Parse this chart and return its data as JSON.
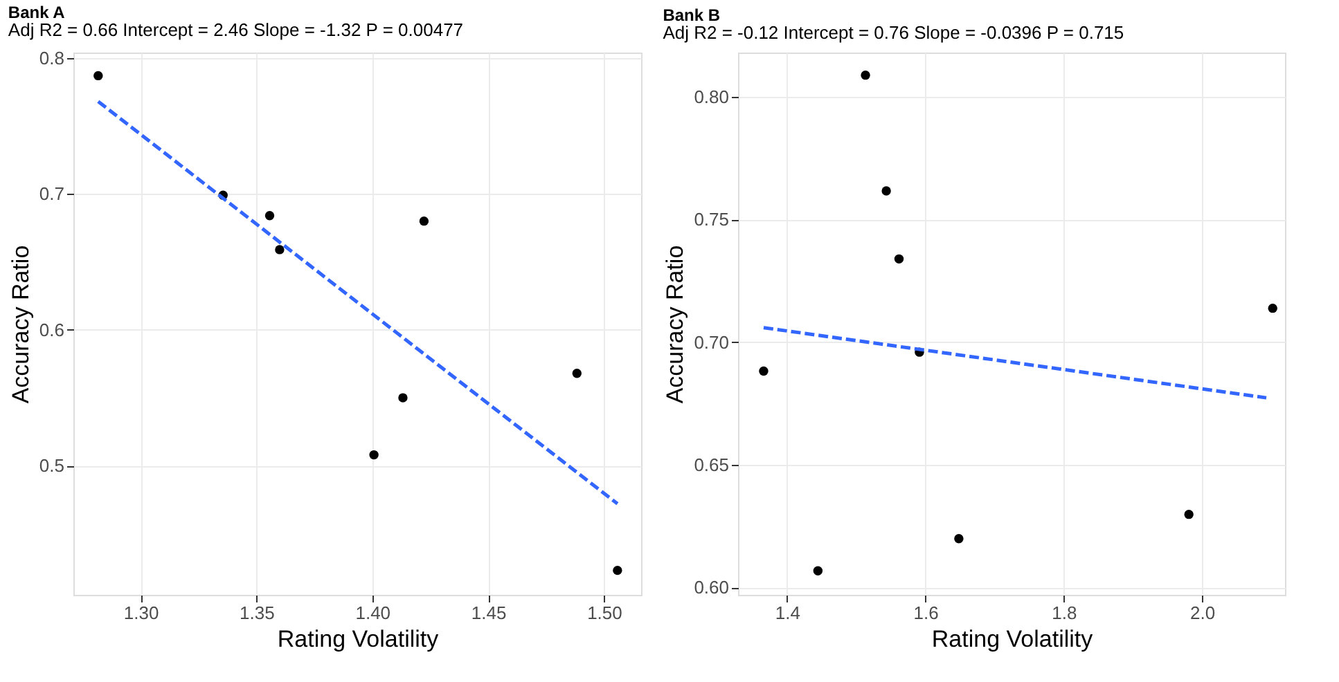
{
  "chart_data": [
    {
      "type": "scatter",
      "title": "Bank A",
      "subtitle": "Adj R2 =  0.66 Intercept = 2.46  Slope = -1.32  P = 0.00477",
      "xlabel": "Rating Volatility",
      "ylabel": "Accuracy Ratio",
      "xlim": [
        1.271,
        1.516
      ],
      "ylim": [
        0.405,
        0.804
      ],
      "xticks": [
        {
          "value": 1.3,
          "label": "1.30"
        },
        {
          "value": 1.35,
          "label": "1.35"
        },
        {
          "value": 1.4,
          "label": "1.40"
        },
        {
          "value": 1.45,
          "label": "1.45"
        },
        {
          "value": 1.5,
          "label": "1.50"
        }
      ],
      "yticks": [
        0.5,
        0.6,
        0.7,
        0.8
      ],
      "grid": true,
      "series": [
        {
          "marker": "circle",
          "color": "#000000",
          "x": [
            1.2817,
            1.3356,
            1.3557,
            1.36,
            1.4223,
            1.4007,
            1.4132,
            1.4883,
            1.5058
          ],
          "values": [
            0.787,
            0.699,
            0.684,
            0.659,
            0.68,
            0.508,
            0.55,
            0.568,
            0.423
          ]
        },
        {
          "type": "line",
          "color": "#3366ff",
          "line_style": "dashed",
          "x": [
            1.2817,
            1.5058
          ],
          "values": [
            0.768,
            0.472
          ]
        }
      ]
    },
    {
      "type": "scatter",
      "title": "Bank B",
      "subtitle": "Adj R2 =  -0.12 Intercept = 0.76  Slope = -0.0396  P = 0.715",
      "xlabel": "Rating Volatility",
      "ylabel": "Accuracy Ratio",
      "xlim": [
        1.329,
        2.12
      ],
      "ylim": [
        0.597,
        0.818
      ],
      "xticks": [
        1.4,
        1.6,
        1.8,
        {
          "value": 2.0,
          "label": "2.0"
        }
      ],
      "yticks": [
        {
          "value": 0.6,
          "label": "0.60"
        },
        {
          "value": 0.65,
          "label": "0.65"
        },
        {
          "value": 0.7,
          "label": "0.70"
        },
        {
          "value": 0.75,
          "label": "0.75"
        },
        {
          "value": 0.8,
          "label": "0.80"
        }
      ],
      "grid": true,
      "series": [
        {
          "marker": "circle",
          "color": "#000000",
          "x": [
            1.366,
            1.4445,
            1.5133,
            1.5434,
            1.5618,
            1.5913,
            1.6483,
            1.981,
            2.1022
          ],
          "values": [
            0.6882,
            0.6068,
            0.8088,
            0.7616,
            0.7339,
            0.6959,
            0.6199,
            0.6298,
            0.7138
          ]
        },
        {
          "type": "line",
          "color": "#3366ff",
          "line_style": "dashed",
          "x": [
            1.366,
            2.093
          ],
          "values": [
            0.7059,
            0.6773
          ]
        }
      ]
    }
  ]
}
